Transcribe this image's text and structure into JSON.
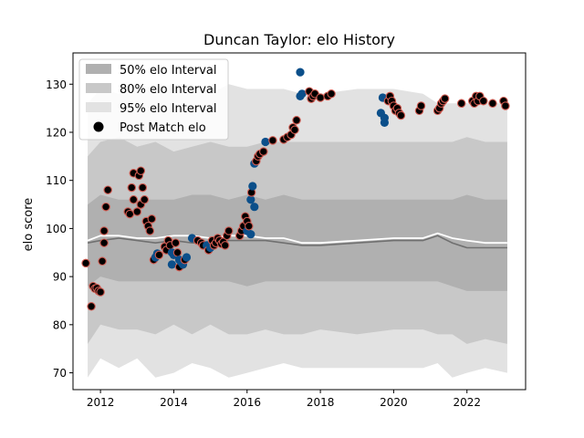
{
  "chart_data": {
    "type": "scatter",
    "title": "Duncan Taylor: elo History",
    "xlabel": "",
    "ylabel": "elo score",
    "xlim": [
      2011.25,
      2023.6
    ],
    "ylim": [
      66.5,
      136.5
    ],
    "xticks": [
      2012,
      2014,
      2016,
      2018,
      2020,
      2022
    ],
    "yticks": [
      70,
      80,
      90,
      100,
      110,
      120,
      130
    ],
    "grid": false,
    "legend_position": "top-left",
    "legend": {
      "band50": "50% elo Interval",
      "band80": "80% elo Interval",
      "band95": "95% elo Interval",
      "points": "Post Match elo"
    },
    "colors": {
      "band50": "#b0b0b0",
      "band80": "#c8c8c8",
      "band95": "#e2e2e2",
      "median_line": "#707070",
      "mean_line": "#ffffff",
      "point_black": "#000000",
      "point_blue": "#0b4f8a",
      "point_edge": "#d05a50"
    },
    "band_x": [
      2011.65,
      2012.0,
      2012.5,
      2013.0,
      2013.5,
      2014.0,
      2014.5,
      2015.0,
      2015.5,
      2016.0,
      2016.5,
      2017.0,
      2017.5,
      2018.0,
      2019.0,
      2020.0,
      2020.8,
      2021.2,
      2021.6,
      2022.0,
      2022.5,
      2023.1
    ],
    "band95_upper": [
      126,
      129,
      128,
      130,
      129,
      130,
      130,
      128,
      130,
      129,
      129,
      129,
      128,
      128,
      129,
      129,
      128,
      126,
      126,
      126,
      126,
      126
    ],
    "band95_lower": [
      69,
      73,
      71,
      73,
      69,
      70,
      72,
      71,
      69,
      70,
      71,
      72,
      71,
      71,
      71,
      71,
      71,
      72,
      69,
      70,
      71,
      70
    ],
    "band80_upper": [
      115,
      118,
      119,
      117,
      118,
      116,
      117,
      118,
      117,
      117,
      118,
      118,
      118,
      118,
      118,
      118,
      118,
      118,
      118,
      119,
      118,
      118
    ],
    "band80_lower": [
      76,
      80,
      79,
      79,
      78,
      80,
      78,
      80,
      78,
      78,
      79,
      78,
      78,
      79,
      78,
      79,
      79,
      78,
      78,
      76,
      77,
      76
    ],
    "band50_upper": [
      105,
      107,
      106,
      106,
      106,
      106,
      107,
      107,
      106,
      107,
      106,
      107,
      106,
      106,
      106,
      106,
      106,
      106,
      106,
      107,
      106,
      106
    ],
    "band50_lower": [
      88,
      90,
      89,
      89,
      89,
      89,
      89,
      89,
      89,
      88,
      89,
      89,
      89,
      89,
      89,
      89,
      89,
      89,
      88,
      87,
      87,
      87
    ],
    "median_line_y": [
      97.0,
      97.5,
      98.0,
      97.5,
      97.0,
      97.5,
      97.0,
      97.0,
      97.5,
      97.5,
      97.5,
      97.0,
      96.5,
      96.5,
      97.0,
      97.5,
      97.5,
      98.5,
      97.0,
      96.0,
      96.0,
      96.0
    ],
    "mean_line_y": [
      97.5,
      98.5,
      98.5,
      98.0,
      98.0,
      98.5,
      98.5,
      98.0,
      98.5,
      98.5,
      98.0,
      98.0,
      97.0,
      97.0,
      97.5,
      98.0,
      98.0,
      99.0,
      98.0,
      97.5,
      97.0,
      97.0
    ],
    "points": [
      {
        "x": 2011.6,
        "y": 92.8,
        "c": "k"
      },
      {
        "x": 2011.75,
        "y": 83.8,
        "c": "k"
      },
      {
        "x": 2011.8,
        "y": 88.0,
        "c": "k"
      },
      {
        "x": 2011.85,
        "y": 87.5,
        "c": "k"
      },
      {
        "x": 2011.9,
        "y": 87.6,
        "c": "k"
      },
      {
        "x": 2011.95,
        "y": 87.0,
        "c": "k"
      },
      {
        "x": 2012.0,
        "y": 86.8,
        "c": "k"
      },
      {
        "x": 2012.05,
        "y": 93.2,
        "c": "k"
      },
      {
        "x": 2012.1,
        "y": 97.0,
        "c": "k"
      },
      {
        "x": 2012.1,
        "y": 99.5,
        "c": "k"
      },
      {
        "x": 2012.15,
        "y": 104.5,
        "c": "k"
      },
      {
        "x": 2012.2,
        "y": 108.0,
        "c": "k"
      },
      {
        "x": 2012.75,
        "y": 103.5,
        "c": "k"
      },
      {
        "x": 2012.8,
        "y": 103.0,
        "c": "k"
      },
      {
        "x": 2012.85,
        "y": 108.5,
        "c": "k"
      },
      {
        "x": 2012.9,
        "y": 106.0,
        "c": "k"
      },
      {
        "x": 2012.9,
        "y": 111.5,
        "c": "k"
      },
      {
        "x": 2013.0,
        "y": 103.5,
        "c": "k"
      },
      {
        "x": 2013.05,
        "y": 111.0,
        "c": "k"
      },
      {
        "x": 2013.1,
        "y": 112.0,
        "c": "k"
      },
      {
        "x": 2013.1,
        "y": 105.0,
        "c": "k"
      },
      {
        "x": 2013.15,
        "y": 108.5,
        "c": "k"
      },
      {
        "x": 2013.2,
        "y": 106.0,
        "c": "k"
      },
      {
        "x": 2013.25,
        "y": 101.5,
        "c": "k"
      },
      {
        "x": 2013.3,
        "y": 100.5,
        "c": "k"
      },
      {
        "x": 2013.35,
        "y": 99.5,
        "c": "k"
      },
      {
        "x": 2013.4,
        "y": 102.0,
        "c": "k"
      },
      {
        "x": 2013.45,
        "y": 93.5,
        "c": "k"
      },
      {
        "x": 2013.5,
        "y": 94.0,
        "c": "b"
      },
      {
        "x": 2013.55,
        "y": 94.8,
        "c": "b"
      },
      {
        "x": 2013.6,
        "y": 94.5,
        "c": "k"
      },
      {
        "x": 2013.75,
        "y": 96.2,
        "c": "k"
      },
      {
        "x": 2013.8,
        "y": 95.5,
        "c": "k"
      },
      {
        "x": 2013.85,
        "y": 97.5,
        "c": "k"
      },
      {
        "x": 2013.9,
        "y": 96.5,
        "c": "k"
      },
      {
        "x": 2013.95,
        "y": 95.0,
        "c": "b"
      },
      {
        "x": 2013.95,
        "y": 92.5,
        "c": "b"
      },
      {
        "x": 2014.0,
        "y": 94.5,
        "c": "b"
      },
      {
        "x": 2014.05,
        "y": 97.0,
        "c": "k"
      },
      {
        "x": 2014.1,
        "y": 95.0,
        "c": "k"
      },
      {
        "x": 2014.15,
        "y": 93.5,
        "c": "b"
      },
      {
        "x": 2014.15,
        "y": 92.0,
        "c": "k"
      },
      {
        "x": 2014.2,
        "y": 93.0,
        "c": "b"
      },
      {
        "x": 2014.25,
        "y": 92.5,
        "c": "b"
      },
      {
        "x": 2014.3,
        "y": 93.5,
        "c": "k"
      },
      {
        "x": 2014.35,
        "y": 94.0,
        "c": "b"
      },
      {
        "x": 2014.5,
        "y": 98.0,
        "c": "b"
      },
      {
        "x": 2014.65,
        "y": 97.5,
        "c": "k"
      },
      {
        "x": 2014.75,
        "y": 97.0,
        "c": "k"
      },
      {
        "x": 2014.8,
        "y": 96.5,
        "c": "k"
      },
      {
        "x": 2014.9,
        "y": 96.5,
        "c": "b"
      },
      {
        "x": 2014.95,
        "y": 95.5,
        "c": "k"
      },
      {
        "x": 2015.0,
        "y": 96.0,
        "c": "b"
      },
      {
        "x": 2015.05,
        "y": 97.5,
        "c": "k"
      },
      {
        "x": 2015.1,
        "y": 96.5,
        "c": "k"
      },
      {
        "x": 2015.15,
        "y": 97.0,
        "c": "k"
      },
      {
        "x": 2015.2,
        "y": 98.0,
        "c": "k"
      },
      {
        "x": 2015.25,
        "y": 97.5,
        "c": "k"
      },
      {
        "x": 2015.3,
        "y": 96.8,
        "c": "k"
      },
      {
        "x": 2015.35,
        "y": 97.2,
        "c": "k"
      },
      {
        "x": 2015.4,
        "y": 96.5,
        "c": "k"
      },
      {
        "x": 2015.45,
        "y": 98.5,
        "c": "k"
      },
      {
        "x": 2015.5,
        "y": 99.5,
        "c": "k"
      },
      {
        "x": 2015.8,
        "y": 98.5,
        "c": "k"
      },
      {
        "x": 2015.85,
        "y": 99.5,
        "c": "k"
      },
      {
        "x": 2015.9,
        "y": 100.5,
        "c": "k"
      },
      {
        "x": 2015.95,
        "y": 102.5,
        "c": "k"
      },
      {
        "x": 2016.0,
        "y": 101.5,
        "c": "k"
      },
      {
        "x": 2016.0,
        "y": 99.5,
        "c": "b"
      },
      {
        "x": 2016.05,
        "y": 100.5,
        "c": "k"
      },
      {
        "x": 2016.1,
        "y": 98.8,
        "c": "b"
      },
      {
        "x": 2016.1,
        "y": 106.0,
        "c": "b"
      },
      {
        "x": 2016.12,
        "y": 107.5,
        "c": "k"
      },
      {
        "x": 2016.15,
        "y": 108.8,
        "c": "b"
      },
      {
        "x": 2016.2,
        "y": 104.5,
        "c": "b"
      },
      {
        "x": 2016.2,
        "y": 113.5,
        "c": "b"
      },
      {
        "x": 2016.25,
        "y": 114.0,
        "c": "k"
      },
      {
        "x": 2016.3,
        "y": 115.0,
        "c": "k"
      },
      {
        "x": 2016.35,
        "y": 115.5,
        "c": "k"
      },
      {
        "x": 2016.45,
        "y": 116.0,
        "c": "k"
      },
      {
        "x": 2016.5,
        "y": 118.0,
        "c": "b"
      },
      {
        "x": 2016.7,
        "y": 118.3,
        "c": "k"
      },
      {
        "x": 2017.0,
        "y": 118.5,
        "c": "k"
      },
      {
        "x": 2017.1,
        "y": 119.0,
        "c": "k"
      },
      {
        "x": 2017.2,
        "y": 119.5,
        "c": "k"
      },
      {
        "x": 2017.25,
        "y": 121.0,
        "c": "k"
      },
      {
        "x": 2017.3,
        "y": 120.5,
        "c": "k"
      },
      {
        "x": 2017.35,
        "y": 122.5,
        "c": "k"
      },
      {
        "x": 2017.45,
        "y": 132.5,
        "c": "b"
      },
      {
        "x": 2017.45,
        "y": 127.5,
        "c": "b"
      },
      {
        "x": 2017.5,
        "y": 128.0,
        "c": "b"
      },
      {
        "x": 2017.7,
        "y": 128.5,
        "c": "k"
      },
      {
        "x": 2017.75,
        "y": 127.0,
        "c": "k"
      },
      {
        "x": 2017.8,
        "y": 127.5,
        "c": "k"
      },
      {
        "x": 2017.85,
        "y": 128.0,
        "c": "k"
      },
      {
        "x": 2018.0,
        "y": 127.2,
        "c": "k"
      },
      {
        "x": 2018.2,
        "y": 127.5,
        "c": "k"
      },
      {
        "x": 2018.3,
        "y": 128.0,
        "c": "k"
      },
      {
        "x": 2019.65,
        "y": 124.0,
        "c": "b"
      },
      {
        "x": 2019.7,
        "y": 127.2,
        "c": "b"
      },
      {
        "x": 2019.75,
        "y": 122.0,
        "c": "b"
      },
      {
        "x": 2019.75,
        "y": 123.0,
        "c": "b"
      },
      {
        "x": 2019.8,
        "y": 127.0,
        "c": "b"
      },
      {
        "x": 2019.85,
        "y": 126.5,
        "c": "k"
      },
      {
        "x": 2019.9,
        "y": 127.5,
        "c": "k"
      },
      {
        "x": 2019.95,
        "y": 126.5,
        "c": "k"
      },
      {
        "x": 2020.0,
        "y": 125.5,
        "c": "k"
      },
      {
        "x": 2020.05,
        "y": 124.5,
        "c": "k"
      },
      {
        "x": 2020.1,
        "y": 125.0,
        "c": "k"
      },
      {
        "x": 2020.15,
        "y": 124.0,
        "c": "k"
      },
      {
        "x": 2020.2,
        "y": 123.5,
        "c": "k"
      },
      {
        "x": 2020.7,
        "y": 124.5,
        "c": "k"
      },
      {
        "x": 2020.75,
        "y": 125.5,
        "c": "k"
      },
      {
        "x": 2021.2,
        "y": 124.5,
        "c": "k"
      },
      {
        "x": 2021.25,
        "y": 125.0,
        "c": "k"
      },
      {
        "x": 2021.3,
        "y": 126.0,
        "c": "k"
      },
      {
        "x": 2021.35,
        "y": 126.5,
        "c": "k"
      },
      {
        "x": 2021.4,
        "y": 127.0,
        "c": "k"
      },
      {
        "x": 2021.85,
        "y": 126.0,
        "c": "k"
      },
      {
        "x": 2022.15,
        "y": 126.5,
        "c": "k"
      },
      {
        "x": 2022.2,
        "y": 126.0,
        "c": "k"
      },
      {
        "x": 2022.25,
        "y": 127.5,
        "c": "k"
      },
      {
        "x": 2022.3,
        "y": 126.5,
        "c": "k"
      },
      {
        "x": 2022.35,
        "y": 127.5,
        "c": "k"
      },
      {
        "x": 2022.45,
        "y": 126.5,
        "c": "k"
      },
      {
        "x": 2022.7,
        "y": 126.0,
        "c": "k"
      },
      {
        "x": 2023.0,
        "y": 126.5,
        "c": "k"
      },
      {
        "x": 2023.05,
        "y": 125.5,
        "c": "k"
      }
    ]
  }
}
